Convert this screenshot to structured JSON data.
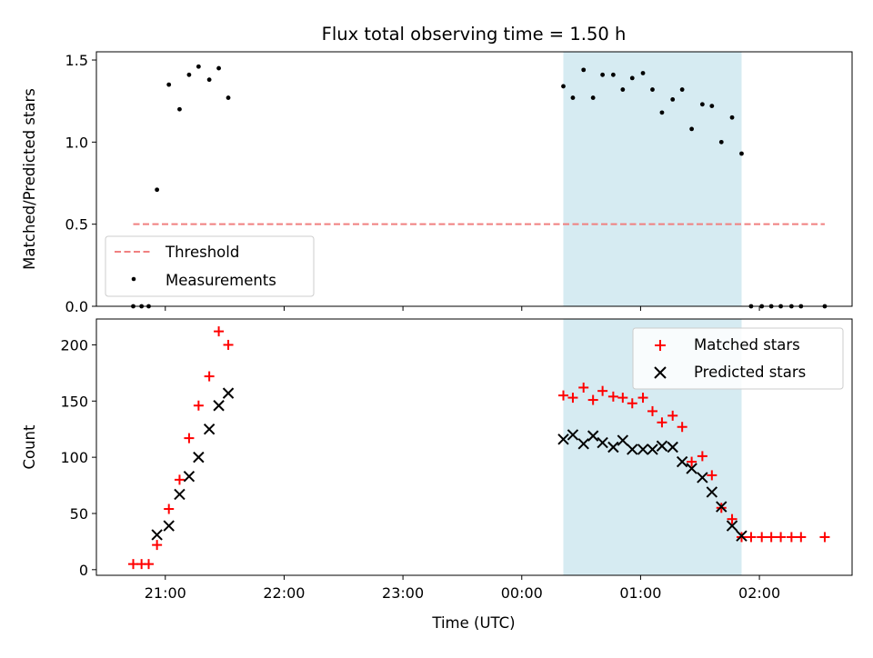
{
  "figure": {
    "title": "Flux total observing time = 1.50 h",
    "xlabel": "Time (UTC)",
    "x_ticks": [
      {
        "label": "21:00",
        "t": 21.0
      },
      {
        "label": "22:00",
        "t": 22.0
      },
      {
        "label": "23:00",
        "t": 23.0
      },
      {
        "label": "00:00",
        "t": 24.0
      },
      {
        "label": "01:00",
        "t": 25.0
      },
      {
        "label": "02:00",
        "t": 26.0
      }
    ]
  },
  "chart_data": [
    {
      "type": "scatter",
      "ylabel": "Matched/Predicted stars",
      "x_unit": "hours UTC, values past 24 fall on the following day",
      "xlim": [
        20.42,
        26.78
      ],
      "ylim": [
        0,
        1.55
      ],
      "y_ticks": [
        "0.0",
        "0.5",
        "1.0",
        "1.5"
      ],
      "y_tick_values": [
        0,
        0.5,
        1.0,
        1.5
      ],
      "shaded_region": {
        "x_start": 24.35,
        "x_end": 25.85,
        "color": "#add8e6"
      },
      "legend": {
        "position": "lower left",
        "entries": [
          "Threshold",
          "Measurements"
        ]
      },
      "threshold": {
        "name": "Threshold",
        "y": 0.5,
        "x_range": [
          20.73,
          26.55
        ],
        "color": "#f08080",
        "style": "dashed"
      },
      "series": [
        {
          "name": "Measurements",
          "color": "#000000",
          "marker": "dot",
          "x": [
            20.73,
            20.8,
            20.86,
            20.93,
            21.03,
            21.12,
            21.2,
            21.28,
            21.37,
            21.45,
            21.53,
            24.35,
            24.43,
            24.52,
            24.6,
            24.68,
            24.77,
            24.85,
            24.93,
            25.02,
            25.1,
            25.18,
            25.27,
            25.35,
            25.43,
            25.52,
            25.6,
            25.68,
            25.77,
            25.85,
            25.93,
            26.02,
            26.1,
            26.18,
            26.27,
            26.35,
            26.55
          ],
          "y": [
            0.0,
            0.0,
            0.0,
            0.71,
            1.35,
            1.2,
            1.41,
            1.46,
            1.38,
            1.45,
            1.27,
            1.34,
            1.27,
            1.44,
            1.27,
            1.41,
            1.41,
            1.32,
            1.39,
            1.42,
            1.32,
            1.18,
            1.26,
            1.32,
            1.08,
            1.23,
            1.22,
            1.0,
            1.15,
            0.93,
            0.0,
            0.0,
            0.0,
            0.0,
            0.0,
            0.0,
            0.0
          ]
        }
      ]
    },
    {
      "type": "scatter",
      "ylabel": "Count",
      "x_unit": "hours UTC, values past 24 fall on the following day",
      "xlim": [
        20.42,
        26.78
      ],
      "ylim": [
        -5,
        223
      ],
      "y_ticks": [
        "0",
        "50",
        "100",
        "150",
        "200"
      ],
      "y_tick_values": [
        0,
        50,
        100,
        150,
        200
      ],
      "shaded_region": {
        "x_start": 24.35,
        "x_end": 25.85,
        "color": "#add8e6"
      },
      "legend": {
        "position": "upper right",
        "entries": [
          "Matched stars",
          "Predicted stars"
        ]
      },
      "series": [
        {
          "name": "Matched stars",
          "color": "#ff0000",
          "marker": "plus",
          "x": [
            20.73,
            20.8,
            20.86,
            20.93,
            21.03,
            21.12,
            21.2,
            21.28,
            21.37,
            21.45,
            21.53,
            24.35,
            24.43,
            24.52,
            24.6,
            24.68,
            24.77,
            24.85,
            24.93,
            25.02,
            25.1,
            25.18,
            25.27,
            25.35,
            25.43,
            25.52,
            25.6,
            25.68,
            25.77,
            25.85,
            25.93,
            26.02,
            26.1,
            26.18,
            26.27,
            26.35,
            26.55
          ],
          "y": [
            5,
            5,
            5,
            22,
            54,
            80,
            117,
            146,
            172,
            212,
            200,
            155,
            153,
            162,
            151,
            159,
            154,
            153,
            148,
            153,
            141,
            131,
            137,
            127,
            96,
            101,
            84,
            55,
            45,
            29,
            29,
            29,
            29,
            29,
            29,
            29,
            29
          ]
        },
        {
          "name": "Predicted stars",
          "color": "#000000",
          "marker": "x",
          "x": [
            20.93,
            21.03,
            21.12,
            21.2,
            21.28,
            21.37,
            21.45,
            21.53,
            24.35,
            24.43,
            24.52,
            24.6,
            24.68,
            24.77,
            24.85,
            24.93,
            25.02,
            25.1,
            25.18,
            25.27,
            25.35,
            25.43,
            25.52,
            25.6,
            25.68,
            25.77,
            25.85
          ],
          "y": [
            31,
            39,
            67,
            83,
            100,
            125,
            146,
            157,
            116,
            120,
            112,
            119,
            113,
            109,
            115,
            107,
            107,
            107,
            110,
            109,
            96,
            90,
            82,
            69,
            56,
            39,
            30
          ]
        }
      ]
    }
  ]
}
